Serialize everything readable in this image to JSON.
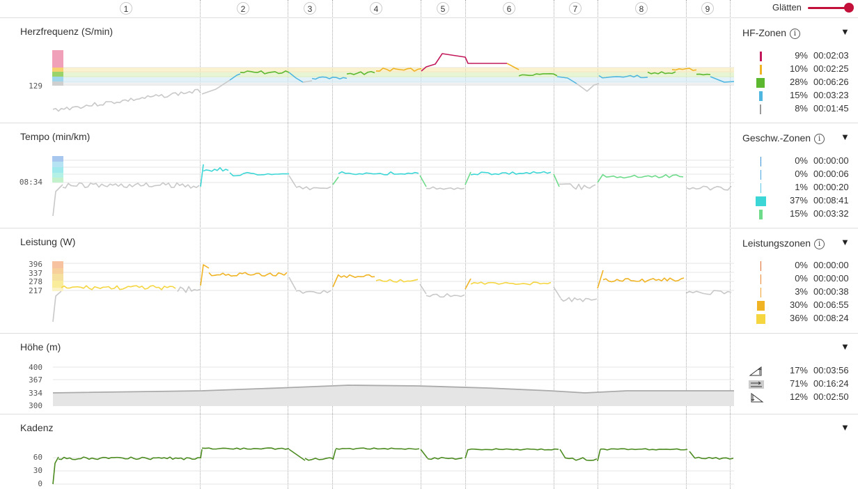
{
  "smoothing": {
    "label": "Glätten",
    "accent": "#c2103a"
  },
  "laps": [
    "1",
    "2",
    "3",
    "4",
    "5",
    "6",
    "7",
    "8",
    "9"
  ],
  "panels": [
    {
      "title": "Herzfrequenz (S/min)",
      "ticks": [
        "129"
      ],
      "zones_title": "HF-Zonen",
      "has_info": true,
      "zones": [
        {
          "color": "#c2185b",
          "pct": "9%",
          "time": "00:02:03"
        },
        {
          "color": "#f0b323",
          "pct": "10%",
          "time": "00:02:25"
        },
        {
          "color": "#5cb82e",
          "pct": "28%",
          "time": "00:06:26"
        },
        {
          "color": "#4fb6e0",
          "pct": "15%",
          "time": "00:03:23"
        },
        {
          "color": "#999999",
          "pct": "8%",
          "time": "00:01:45"
        }
      ]
    },
    {
      "title": "Tempo (min/km)",
      "ticks": [
        "08:34"
      ],
      "zones_title": "Geschw.-Zonen",
      "has_info": true,
      "zones": [
        {
          "color": "#3a8fd9",
          "pct": "0%",
          "time": "00:00:00"
        },
        {
          "color": "#4aa6e0",
          "pct": "0%",
          "time": "00:00:06"
        },
        {
          "color": "#5bc6e6",
          "pct": "1%",
          "time": "00:00:20"
        },
        {
          "color": "#3dd6d6",
          "pct": "37%",
          "time": "00:08:41"
        },
        {
          "color": "#6ddb8a",
          "pct": "15%",
          "time": "00:03:32"
        }
      ]
    },
    {
      "title": "Leistung (W)",
      "ticks": [
        "396",
        "337",
        "278",
        "217"
      ],
      "zones_title": "Leistungszonen",
      "has_info": true,
      "zones": [
        {
          "color": "#e06a2c",
          "pct": "0%",
          "time": "00:00:00"
        },
        {
          "color": "#e8842c",
          "pct": "0%",
          "time": "00:00:00"
        },
        {
          "color": "#eea02a",
          "pct": "3%",
          "time": "00:00:38"
        },
        {
          "color": "#f0b323",
          "pct": "30%",
          "time": "00:06:55"
        },
        {
          "color": "#f5d640",
          "pct": "36%",
          "time": "00:08:24"
        }
      ]
    },
    {
      "title": "Höhe (m)",
      "ticks": [
        "400",
        "367",
        "334",
        "300"
      ],
      "zones_title": "",
      "has_info": false,
      "zones": [
        {
          "icon": "uphill-icon",
          "pct": "17%",
          "time": "00:03:56"
        },
        {
          "icon": "flat-icon",
          "pct": "71%",
          "time": "00:16:24"
        },
        {
          "icon": "downhill-icon",
          "pct": "12%",
          "time": "00:02:50"
        }
      ]
    },
    {
      "title": "Kadenz",
      "ticks": [
        "60",
        "30",
        "0"
      ],
      "zones_title": "",
      "has_info": false,
      "zones": []
    }
  ],
  "dropdown_glyph": "▼",
  "info_glyph": "i",
  "colors": {
    "hr_red": "#c2185b",
    "hr_orange": "#f0b323",
    "hr_green": "#5cb82e",
    "hr_blue": "#4fb6e0",
    "grey_line": "#c8c8c8",
    "pace": "#3dd6d6",
    "pace_green": "#6ddb8a",
    "power_orange": "#f0b323",
    "power_yellow": "#f5d640",
    "cadence": "#4a8a1e",
    "elevation": "#aaaaaa"
  }
}
